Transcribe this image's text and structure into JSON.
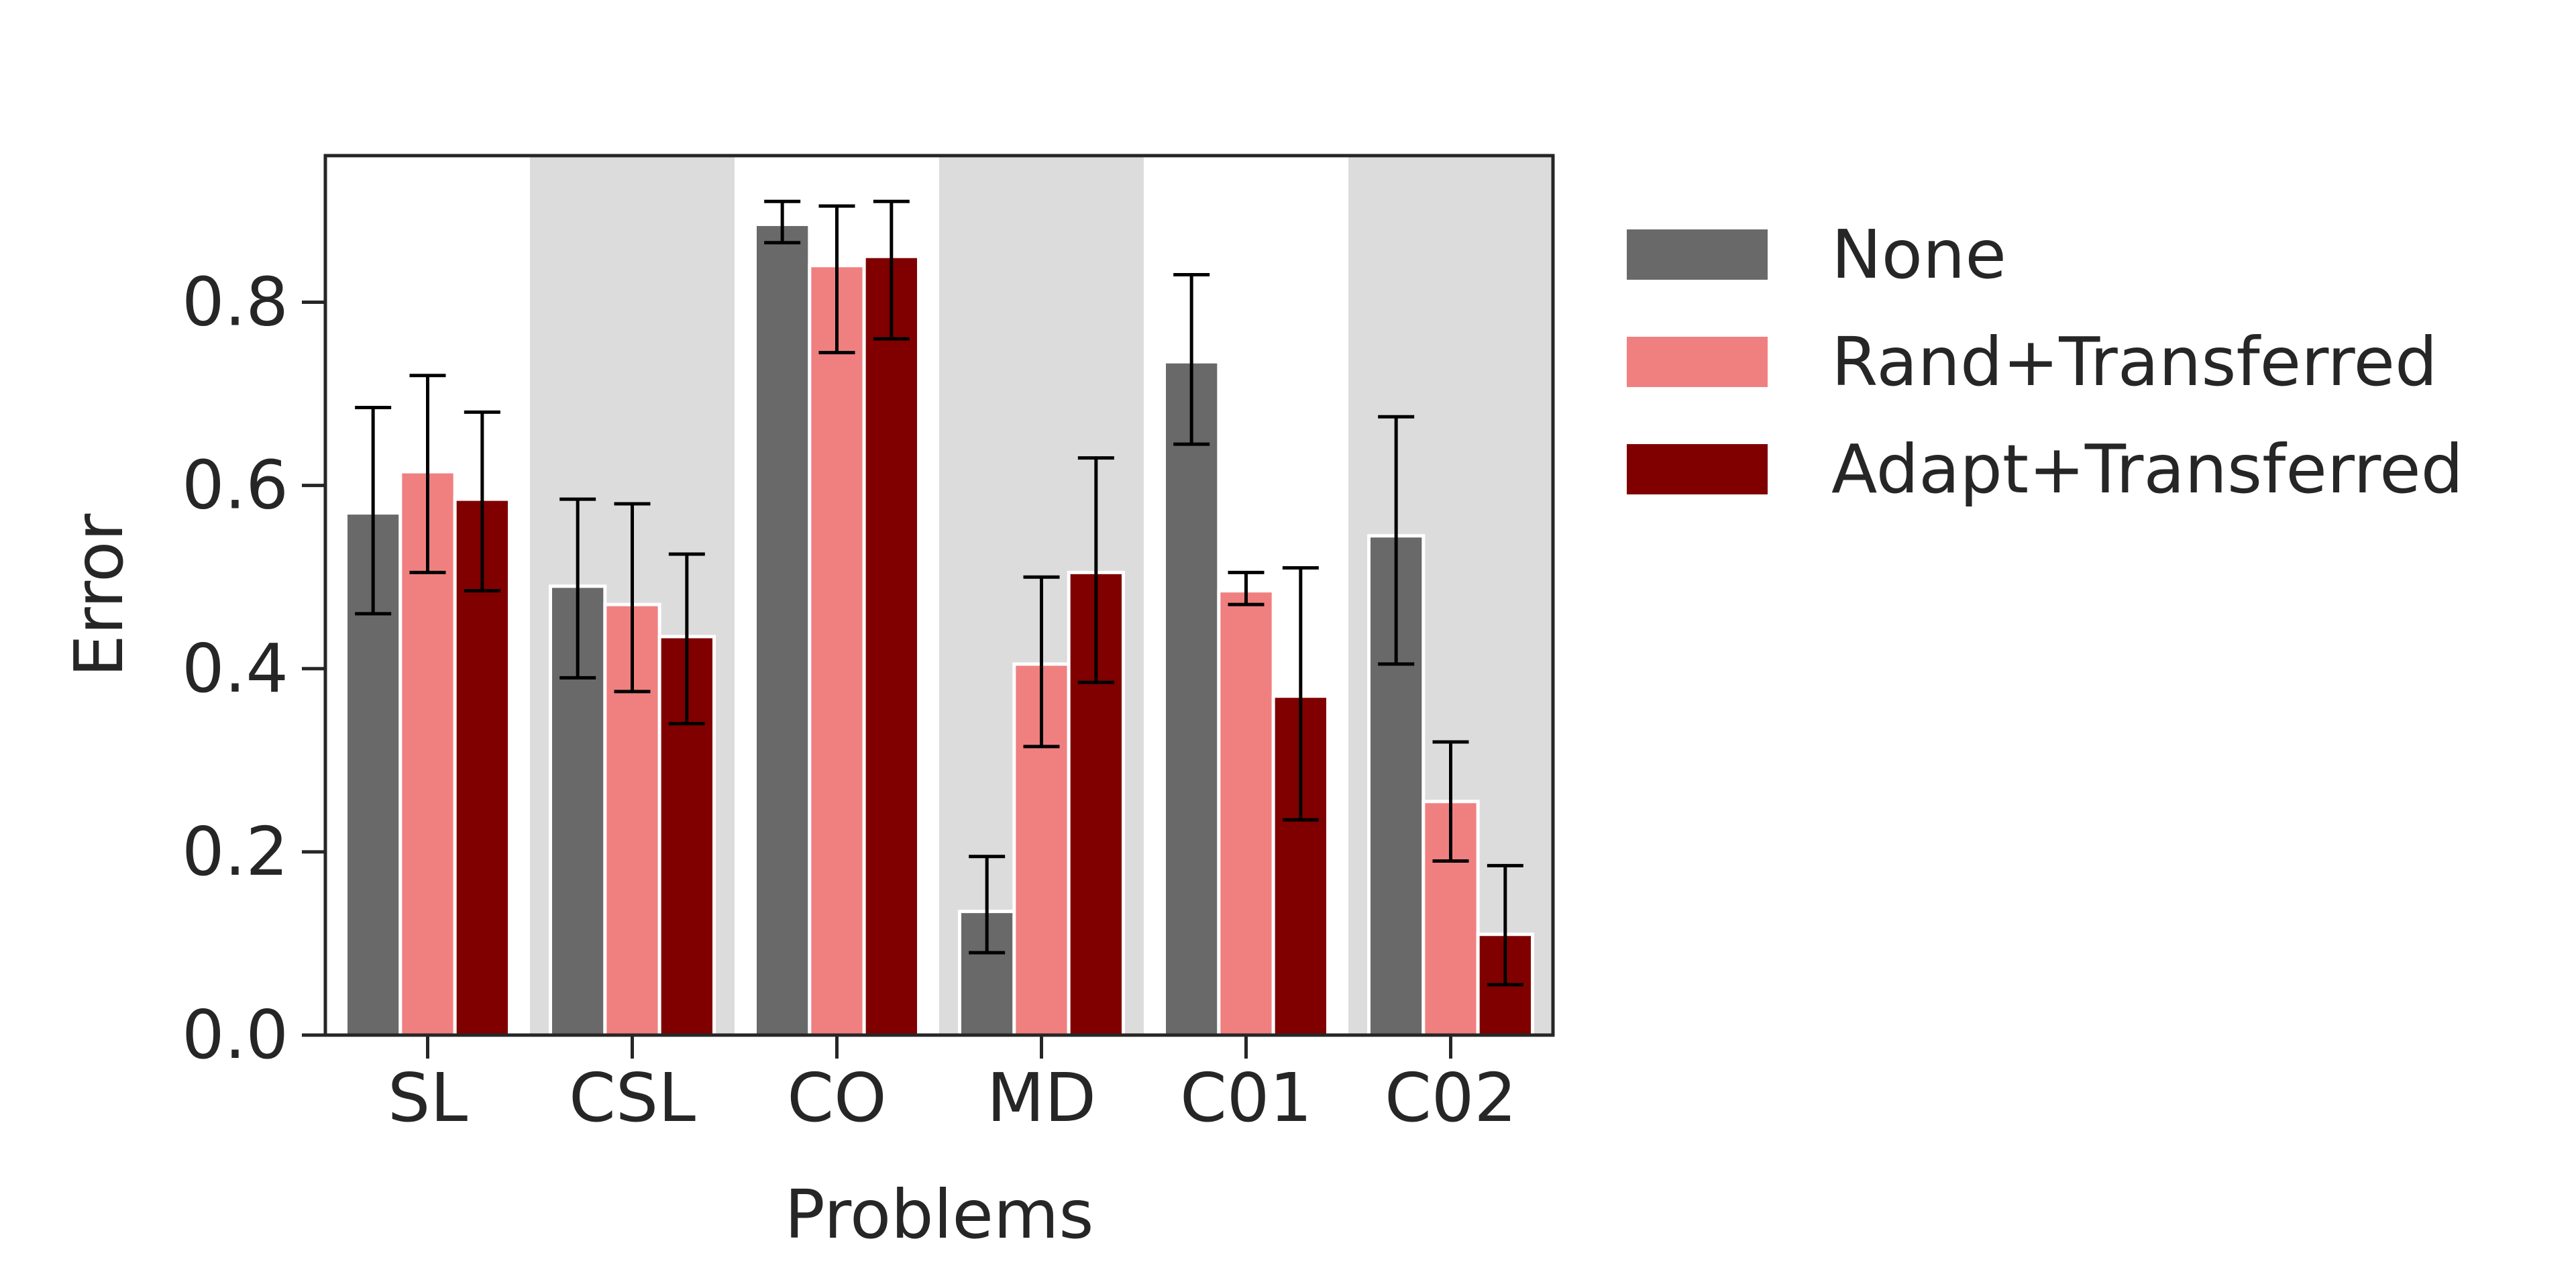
{
  "chart_data": {
    "type": "bar",
    "xlabel": "Problems",
    "ylabel": "Error",
    "ylim": [
      0,
      0.96
    ],
    "yticks": [
      0.0,
      0.2,
      0.4,
      0.6,
      0.8
    ],
    "ytick_labels": [
      "0.0",
      "0.2",
      "0.4",
      "0.6",
      "0.8"
    ],
    "categories": [
      "SL",
      "CSL",
      "CO",
      "MD",
      "C01",
      "C02"
    ],
    "shaded_categories": [
      "CSL",
      "MD",
      "C02"
    ],
    "grid": false,
    "legend_placement": "outside-right",
    "series": [
      {
        "name": "None",
        "color": "#696969",
        "values": [
          0.57,
          0.49,
          0.885,
          0.135,
          0.735,
          0.545
        ],
        "err_low": [
          0.46,
          0.39,
          0.865,
          0.09,
          0.645,
          0.405
        ],
        "err_high": [
          0.685,
          0.585,
          0.91,
          0.195,
          0.83,
          0.675
        ]
      },
      {
        "name": "Rand+Transferred",
        "color": "#f08080",
        "values": [
          0.615,
          0.47,
          0.84,
          0.405,
          0.485,
          0.255
        ],
        "err_low": [
          0.505,
          0.375,
          0.745,
          0.315,
          0.47,
          0.19
        ],
        "err_high": [
          0.72,
          0.58,
          0.905,
          0.5,
          0.505,
          0.32
        ]
      },
      {
        "name": "Adapt+Transferred",
        "color": "#800000",
        "values": [
          0.585,
          0.435,
          0.85,
          0.505,
          0.37,
          0.11
        ],
        "err_low": [
          0.485,
          0.34,
          0.76,
          0.385,
          0.235,
          0.055
        ],
        "err_high": [
          0.68,
          0.525,
          0.91,
          0.63,
          0.51,
          0.185
        ]
      }
    ]
  }
}
